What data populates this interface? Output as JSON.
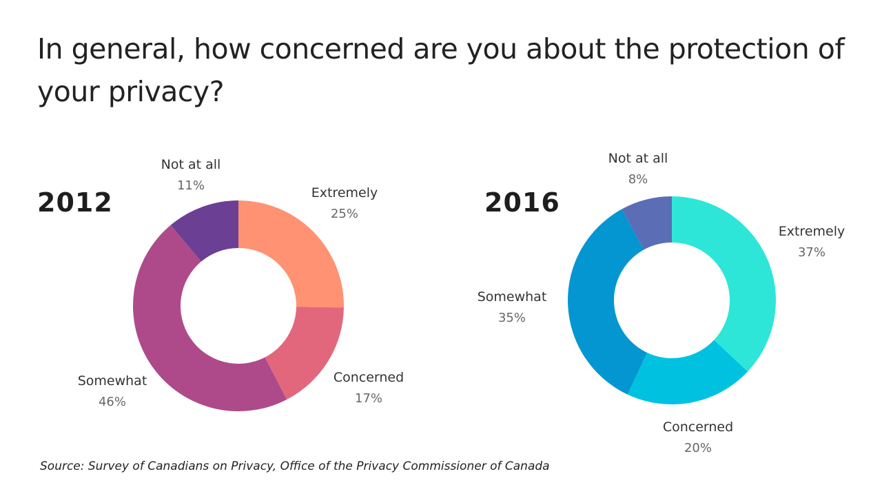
{
  "title": "In general, how concerned are you about the protection of your privacy?",
  "source": "Source: Survey of Canadians on Privacy, Office of the Privacy Commissioner of Canada",
  "chart_data": [
    {
      "type": "pie",
      "subtitle": "2012",
      "categories": [
        "Extremely",
        "Concerned",
        "Somewhat",
        "Not at all"
      ],
      "values": [
        25,
        17,
        46,
        11
      ],
      "value_labels": [
        "25%",
        "17%",
        "46%",
        "11%"
      ],
      "colors": [
        "#ff9273",
        "#e2677d",
        "#ae4a8a",
        "#6b3f94"
      ]
    },
    {
      "type": "pie",
      "subtitle": "2016",
      "categories": [
        "Extremely",
        "Concerned",
        "Somewhat",
        "Not at all"
      ],
      "values": [
        37,
        20,
        35,
        8
      ],
      "value_labels": [
        "37%",
        "20%",
        "35%",
        "8%"
      ],
      "colors": [
        "#2de6d8",
        "#00c2e0",
        "#0396d1",
        "#5a6db5"
      ]
    }
  ]
}
